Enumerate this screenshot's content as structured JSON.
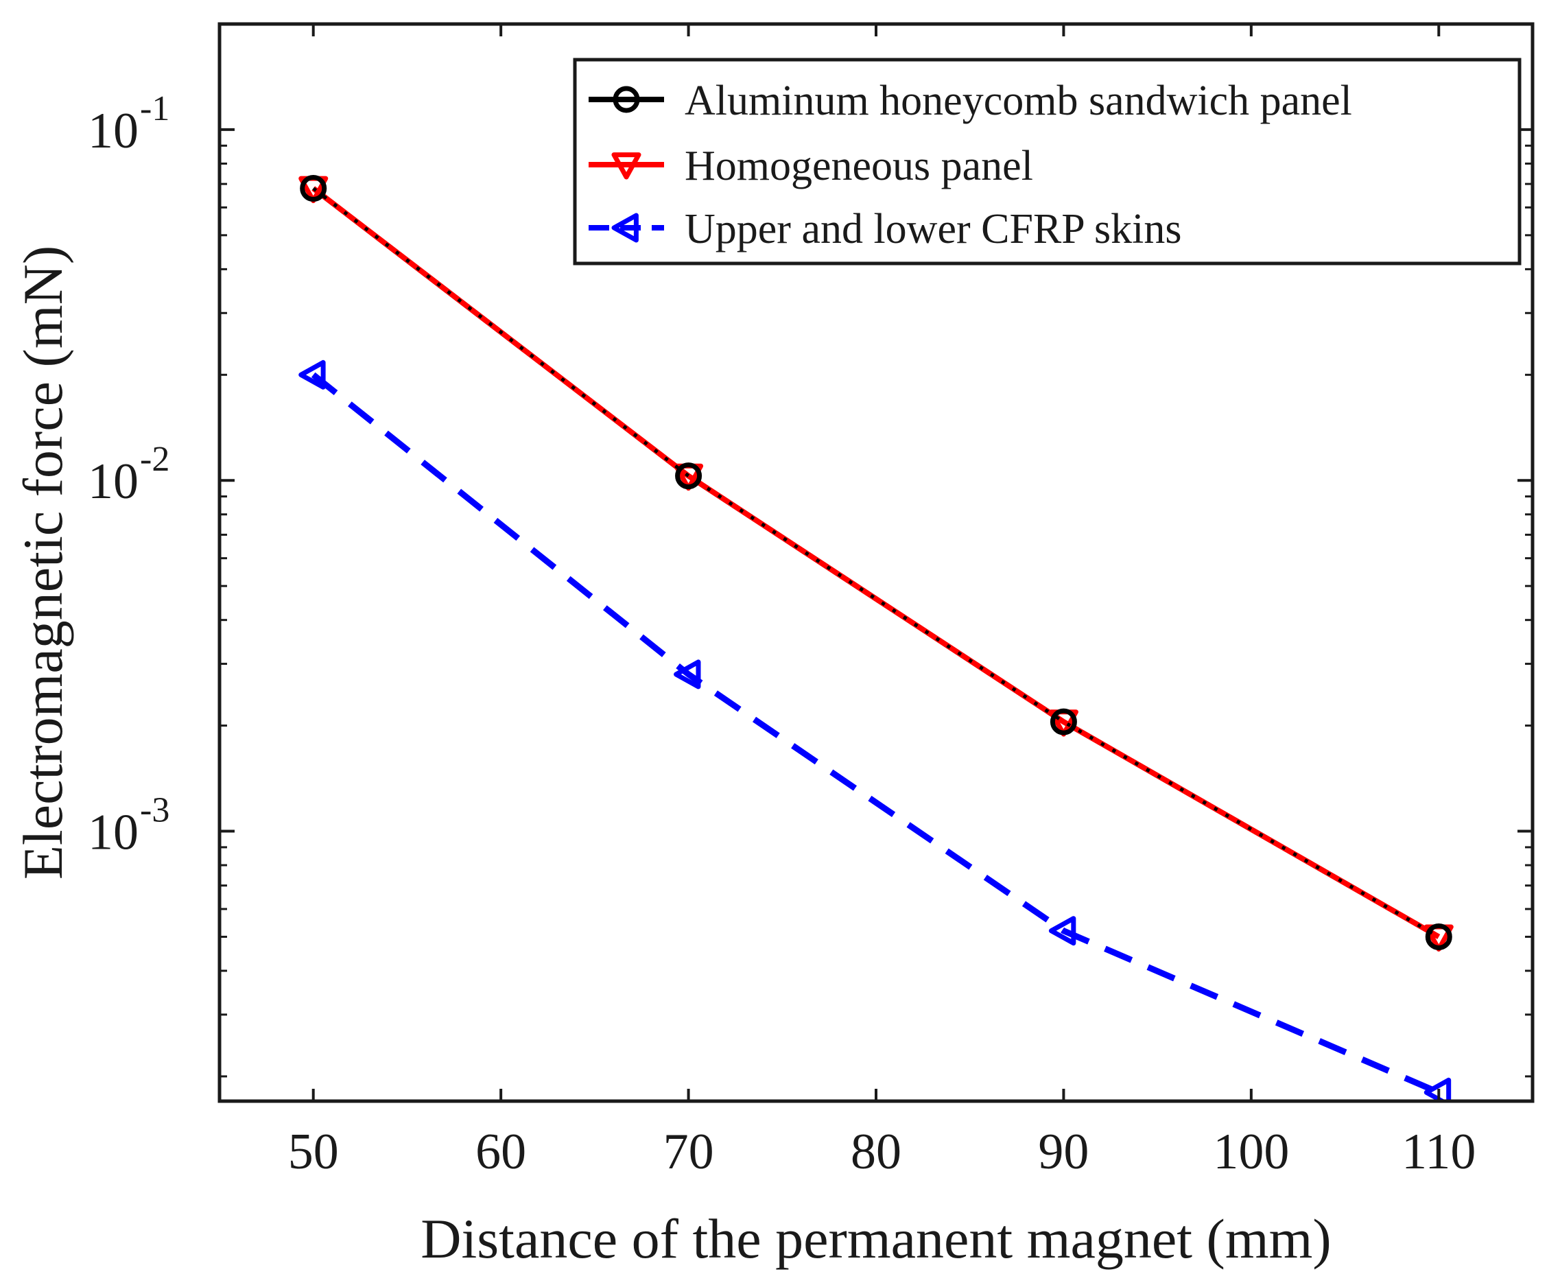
{
  "chart_data": {
    "type": "line",
    "title": "",
    "xlabel": "Distance of the permanent magnet (mm)",
    "ylabel": "Electromagnetic force (mN)",
    "yscale": "log",
    "xlim": [
      45,
      115
    ],
    "ylim": [
      0.00017,
      0.2
    ],
    "xticks": [
      50,
      60,
      70,
      80,
      90,
      100,
      110
    ],
    "xtick_labels": [
      "50",
      "60",
      "70",
      "80",
      "90",
      "100",
      "110"
    ],
    "yticks": [
      {
        "value": 0.1,
        "base": "10",
        "exp": "-1"
      },
      {
        "value": 0.01,
        "base": "10",
        "exp": "-2"
      },
      {
        "value": 0.001,
        "base": "10",
        "exp": "-3"
      }
    ],
    "legend_position": "top-right",
    "series": [
      {
        "name": "Aluminum honeycomb sandwich panel",
        "color": "#000000",
        "line": "solid",
        "marker": "circle",
        "x": [
          50,
          70,
          90,
          110
        ],
        "values": [
          0.068,
          0.0103,
          0.00205,
          0.0005
        ]
      },
      {
        "name": "Homogeneous panel",
        "color": "#ff0000",
        "line": "solid",
        "marker": "triangle-down",
        "x": [
          50,
          70,
          90,
          110
        ],
        "values": [
          0.068,
          0.0103,
          0.00205,
          0.0005
        ]
      },
      {
        "name": "Upper and lower CFRP skins",
        "color": "#0000ff",
        "line": "dashed",
        "marker": "triangle-left",
        "x": [
          50,
          70,
          90,
          110
        ],
        "values": [
          0.02,
          0.0028,
          0.00052,
          0.00018
        ]
      }
    ]
  }
}
